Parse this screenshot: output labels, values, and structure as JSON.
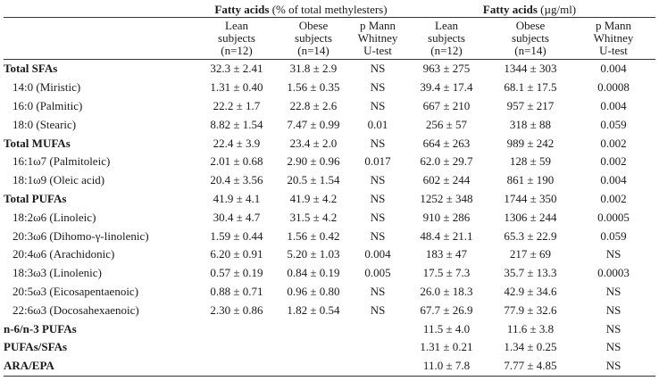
{
  "header": {
    "group1_bold": "Fatty acids",
    "group1_normal": "(% of total methylesters)",
    "group2_bold": "Fatty acids",
    "group2_normal": "(µg/ml)",
    "col_lean": [
      "Lean",
      "subjects",
      "(n=12)"
    ],
    "col_obese": [
      "Obese",
      "subjects",
      "(n=14)"
    ],
    "col_p": [
      "p   Mann",
      "Whitney",
      "U-test"
    ]
  },
  "rows": [
    {
      "label": "Total SFAs",
      "bold": true,
      "indent": false,
      "lean_pct": "32.3 ± 2.41",
      "obese_pct": "31.8 ± 2.9",
      "p_pct": "NS",
      "lean_ug": "963 ± 275",
      "obese_ug": "1344 ± 303",
      "p_ug": "0.004"
    },
    {
      "label": "14:0 (Miristic)",
      "bold": false,
      "indent": true,
      "lean_pct": "1.31 ± 0.40",
      "obese_pct": "1.56 ± 0.35",
      "p_pct": "NS",
      "lean_ug": "39.4 ± 17.4",
      "obese_ug": "68.1 ± 17.5",
      "p_ug": "0.0008"
    },
    {
      "label": "16:0 (Palmitic)",
      "bold": false,
      "indent": true,
      "lean_pct": "22.2 ± 1.7",
      "obese_pct": "22.8 ± 2.6",
      "p_pct": "NS",
      "lean_ug": "667 ± 210",
      "obese_ug": "957 ± 217",
      "p_ug": "0.004"
    },
    {
      "label": "18:0 (Stearic)",
      "bold": false,
      "indent": true,
      "lean_pct": "8.82 ± 1.54",
      "obese_pct": "7.47 ± 0.99",
      "p_pct": "0.01",
      "lean_ug": "256 ± 57",
      "obese_ug": "318 ± 88",
      "p_ug": "0.059"
    },
    {
      "label": "Total MUFAs",
      "bold": true,
      "indent": false,
      "lean_pct": "22.4 ± 3.9",
      "obese_pct": "23.4 ± 2.0",
      "p_pct": "NS",
      "lean_ug": "664 ± 263",
      "obese_ug": "989 ± 242",
      "p_ug": "0.002"
    },
    {
      "label": "16:1ω7 (Palmitoleic)",
      "bold": false,
      "indent": true,
      "lean_pct": "2.01 ± 0.68",
      "obese_pct": "2.90 ± 0.96",
      "p_pct": "0.017",
      "lean_ug": "62.0 ± 29.7",
      "obese_ug": "128 ± 59",
      "p_ug": "0.002"
    },
    {
      "label": "18:1ω9 (Oleic acid)",
      "bold": false,
      "indent": true,
      "lean_pct": "20.4 ± 3.56",
      "obese_pct": "20.5 ± 1.54",
      "p_pct": "NS",
      "lean_ug": "602 ± 244",
      "obese_ug": "861 ± 190",
      "p_ug": "0.004"
    },
    {
      "label": "Total PUFAs",
      "bold": true,
      "indent": false,
      "lean_pct": "41.9 ± 4.1",
      "obese_pct": "41.9 ± 4.2",
      "p_pct": "NS",
      "lean_ug": "1252 ± 348",
      "obese_ug": "1744 ± 350",
      "p_ug": "0.002"
    },
    {
      "label": "18:2ω6 (Linoleic)",
      "bold": false,
      "indent": true,
      "lean_pct": "30.4 ± 4.7",
      "obese_pct": "31.5 ± 4.2",
      "p_pct": "NS",
      "lean_ug": "910 ± 286",
      "obese_ug": "1306 ± 244",
      "p_ug": "0.0005"
    },
    {
      "label": "20:3ω6 (Dihomo-γ-linolenic)",
      "bold": false,
      "indent": true,
      "lean_pct": "1.59 ± 0.44",
      "obese_pct": "1.56 ± 0.42",
      "p_pct": "NS",
      "lean_ug": "48.4 ± 21.1",
      "obese_ug": "65.3 ± 22.9",
      "p_ug": "0.059"
    },
    {
      "label": "20:4ω6 (Arachidonic)",
      "bold": false,
      "indent": true,
      "lean_pct": "6.20 ± 0.91",
      "obese_pct": "5.20 ± 1.03",
      "p_pct": "0.004",
      "lean_ug": "183 ± 47",
      "obese_ug": "217 ± 69",
      "p_ug": "NS"
    },
    {
      "label": "18:3ω3 (Linolenic)",
      "bold": false,
      "indent": true,
      "lean_pct": "0.57 ± 0.19",
      "obese_pct": "0.84 ± 0.19",
      "p_pct": "0.005",
      "lean_ug": "17.5 ± 7.3",
      "obese_ug": "35.7 ± 13.3",
      "p_ug": "0.0003"
    },
    {
      "label": "20:5ω3 (Eicosapentaenoic)",
      "bold": false,
      "indent": true,
      "lean_pct": "0.88 ± 0.71",
      "obese_pct": "0.96 ± 0.80",
      "p_pct": "NS",
      "lean_ug": "26.0 ± 18.3",
      "obese_ug": "42.9 ± 34.6",
      "p_ug": "NS"
    },
    {
      "label": "22:6ω3 (Docosahexaenoic)",
      "bold": false,
      "indent": true,
      "lean_pct": "2.30 ± 0.86",
      "obese_pct": "1.82 ± 0.54",
      "p_pct": "NS",
      "lean_ug": "67.7 ± 26.9",
      "obese_ug": "77.9 ± 32.6",
      "p_ug": "NS"
    },
    {
      "label": "n-6/n-3 PUFAs",
      "bold": true,
      "indent": false,
      "lean_pct": "",
      "obese_pct": "",
      "p_pct": "",
      "lean_ug": "11.5 ± 4.0",
      "obese_ug": "11.6 ± 3.8",
      "p_ug": "NS"
    },
    {
      "label": "PUFAs/SFAs",
      "bold": true,
      "indent": false,
      "lean_pct": "",
      "obese_pct": "",
      "p_pct": "",
      "lean_ug": "1.31 ± 0.21",
      "obese_ug": "1.34 ± 0.25",
      "p_ug": "NS"
    },
    {
      "label": "ARA/EPA",
      "bold": true,
      "indent": false,
      "lean_pct": "",
      "obese_pct": "",
      "p_pct": "",
      "lean_ug": "11.0 ± 7.8",
      "obese_ug": "7.77 ± 4.85",
      "p_ug": "NS"
    }
  ]
}
